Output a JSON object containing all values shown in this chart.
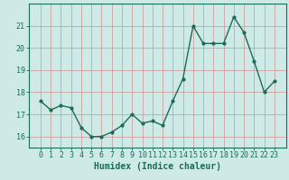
{
  "x": [
    0,
    1,
    2,
    3,
    4,
    5,
    6,
    7,
    8,
    9,
    10,
    11,
    12,
    13,
    14,
    15,
    16,
    17,
    18,
    19,
    20,
    21,
    22,
    23
  ],
  "y": [
    17.6,
    17.2,
    17.4,
    17.3,
    16.4,
    16.0,
    16.0,
    16.2,
    16.5,
    17.0,
    16.6,
    16.7,
    16.5,
    17.6,
    18.6,
    21.0,
    20.2,
    20.2,
    20.2,
    21.4,
    20.7,
    19.4,
    18.0,
    18.5
  ],
  "line_color": "#1a6b5a",
  "marker": "o",
  "marker_size": 2,
  "linewidth": 1.0,
  "bg_color": "#ceeae6",
  "grid_color": "#d09090",
  "tick_color": "#1a6b5a",
  "xlabel": "Humidex (Indice chaleur)",
  "xlabel_fontsize": 7,
  "tick_fontsize": 6,
  "ylim": [
    15.5,
    22.0
  ],
  "yticks": [
    16,
    17,
    18,
    19,
    20,
    21
  ],
  "xticks": [
    0,
    1,
    2,
    3,
    4,
    5,
    6,
    7,
    8,
    9,
    10,
    11,
    12,
    13,
    14,
    15,
    16,
    17,
    18,
    19,
    20,
    21,
    22,
    23
  ]
}
